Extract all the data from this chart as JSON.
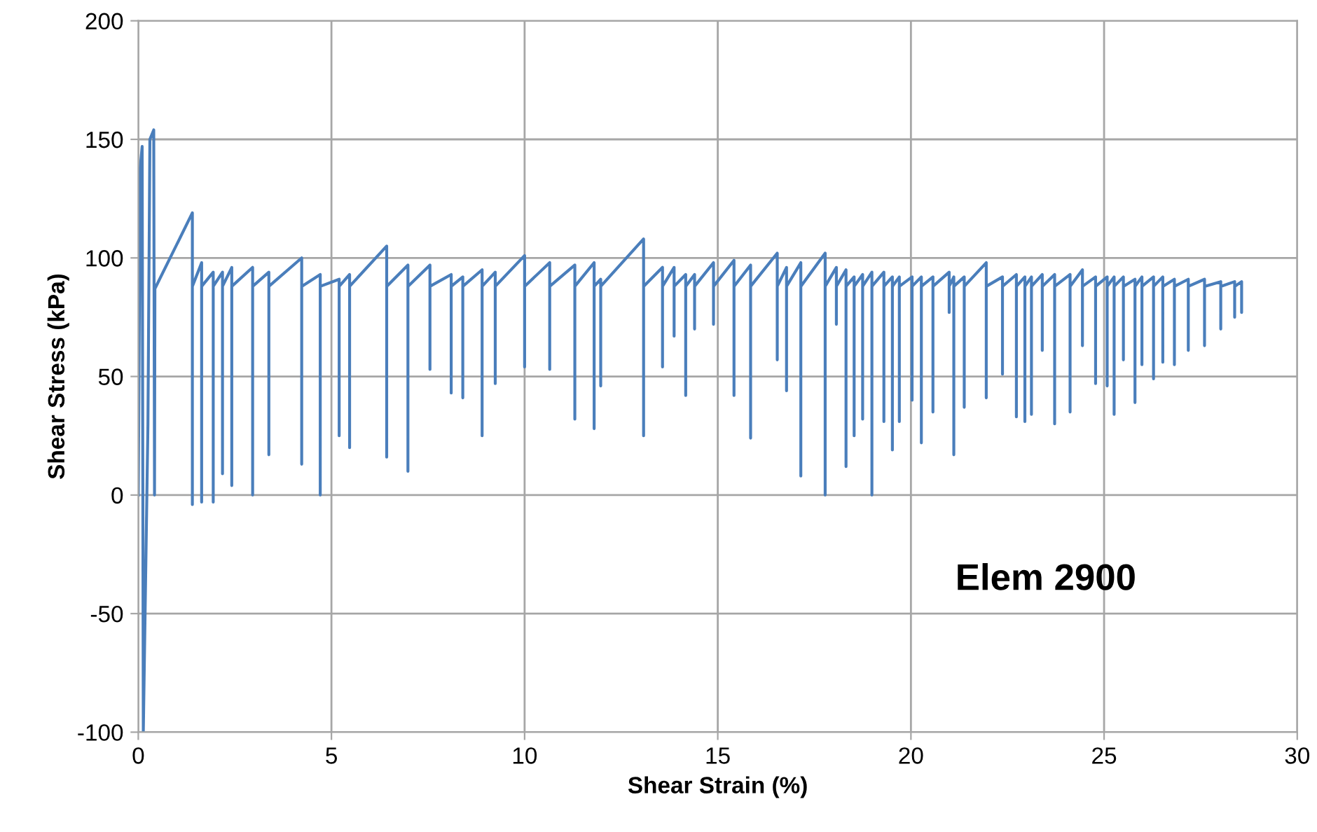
{
  "chart_data": {
    "type": "line",
    "xlabel": "Shear Strain (%)",
    "ylabel": "Shear Stress (kPa)",
    "annotations": [
      "Elem 2900"
    ],
    "xlim": [
      0,
      30
    ],
    "xticks": [
      0,
      5,
      10,
      15,
      20,
      25,
      30
    ],
    "ylim": [
      -100,
      200
    ],
    "yticks": [
      -100,
      -50,
      0,
      50,
      100,
      150,
      200
    ],
    "grid": true,
    "marker": "none",
    "line_style": "solid",
    "series": [
      {
        "color": "#4a7ebb",
        "x": [
          0,
          0.05,
          0.1,
          0.13,
          0.25,
          0.3,
          0.4,
          0.42,
          0.43,
          1.4,
          1.4,
          1.4,
          1.64,
          1.64,
          1.64,
          1.94,
          1.94,
          1.94,
          2.18,
          2.18,
          2.18,
          2.42,
          2.42,
          2.42,
          2.96,
          2.96,
          2.96,
          3.38,
          3.38,
          3.38,
          4.23,
          4.23,
          4.23,
          4.71,
          4.71,
          4.71,
          5.2,
          5.2,
          5.2,
          5.47,
          5.47,
          5.47,
          6.43,
          6.43,
          6.43,
          6.98,
          6.98,
          6.98,
          7.55,
          7.55,
          7.55,
          8.1,
          8.1,
          8.1,
          8.4,
          8.4,
          8.4,
          8.9,
          8.9,
          8.9,
          9.24,
          9.24,
          9.24,
          10.0,
          10.0,
          10.0,
          10.65,
          10.65,
          10.65,
          11.3,
          11.3,
          11.3,
          11.8,
          11.8,
          11.8,
          11.97,
          11.97,
          11.97,
          13.08,
          13.08,
          13.08,
          13.57,
          13.57,
          13.57,
          13.87,
          13.87,
          13.87,
          14.17,
          14.17,
          14.17,
          14.4,
          14.4,
          14.4,
          14.89,
          14.89,
          14.89,
          15.42,
          15.42,
          15.42,
          15.85,
          15.85,
          15.85,
          16.54,
          16.54,
          16.54,
          16.78,
          16.78,
          16.78,
          17.15,
          17.15,
          17.15,
          17.78,
          17.78,
          17.78,
          18.07,
          18.07,
          18.07,
          18.32,
          18.32,
          18.32,
          18.53,
          18.53,
          18.53,
          18.75,
          18.75,
          18.75,
          18.99,
          18.99,
          18.99,
          19.3,
          19.3,
          19.3,
          19.52,
          19.52,
          19.52,
          19.7,
          19.7,
          19.7,
          20.03,
          20.03,
          20.03,
          20.27,
          20.27,
          20.27,
          20.57,
          20.57,
          20.57,
          20.99,
          20.99,
          20.99,
          21.11,
          21.11,
          21.11,
          21.38,
          21.38,
          21.38,
          21.95,
          21.95,
          21.95,
          22.37,
          22.37,
          22.37,
          22.73,
          22.73,
          22.73,
          22.95,
          22.95,
          22.95,
          23.12,
          23.12,
          23.12,
          23.4,
          23.4,
          23.4,
          23.72,
          23.72,
          23.72,
          24.12,
          24.12,
          24.12,
          24.44,
          24.44,
          24.44,
          24.78,
          24.78,
          24.78,
          25.08,
          25.08,
          25.08,
          25.26,
          25.26,
          25.26,
          25.5,
          25.5,
          25.5,
          25.8,
          25.8,
          25.8,
          25.98,
          25.98,
          25.98,
          26.28,
          26.28,
          26.28,
          26.52,
          26.52,
          26.52,
          26.82,
          26.82,
          26.82,
          27.18,
          27.18,
          27.18,
          27.6,
          27.6,
          27.6,
          28.02,
          28.02,
          28.02,
          28.38,
          28.38,
          28.38,
          28.56,
          28.56,
          28.56
        ],
        "values": [
          0,
          138,
          147,
          -100,
          30,
          150,
          154,
          0,
          87,
          119,
          -4,
          88,
          98,
          -3,
          88,
          94,
          -3,
          88,
          94,
          9,
          88,
          96,
          4,
          88,
          96,
          0,
          88,
          94,
          17,
          88,
          100,
          13,
          88,
          93,
          0,
          88,
          91,
          25,
          88,
          93,
          20,
          88,
          105,
          16,
          88,
          97,
          10,
          88,
          97,
          53,
          88,
          93,
          43,
          88,
          92,
          41,
          88,
          95,
          25,
          88,
          94,
          47,
          88,
          101,
          54,
          88,
          98,
          53,
          88,
          97,
          32,
          88,
          98,
          28,
          88,
          91,
          46,
          88,
          108,
          25,
          88,
          96,
          54,
          88,
          96,
          67,
          88,
          93,
          42,
          88,
          93,
          70,
          88,
          98,
          72,
          88,
          99,
          42,
          88,
          97,
          24,
          88,
          102,
          57,
          88,
          96,
          44,
          88,
          98,
          8,
          88,
          102,
          0,
          88,
          96,
          72,
          88,
          95,
          12,
          88,
          92,
          25,
          88,
          93,
          32,
          88,
          94,
          0,
          88,
          94,
          31,
          88,
          92,
          19,
          88,
          92,
          31,
          88,
          92,
          40,
          88,
          92,
          22,
          88,
          92,
          35,
          88,
          94,
          77,
          88,
          92,
          17,
          88,
          92,
          37,
          88,
          98,
          41,
          88,
          92,
          51,
          88,
          93,
          33,
          88,
          92,
          31,
          88,
          92,
          34,
          88,
          93,
          61,
          88,
          93,
          30,
          88,
          93,
          35,
          88,
          95,
          63,
          88,
          92,
          47,
          88,
          92,
          46,
          88,
          92,
          34,
          88,
          92,
          57,
          88,
          91,
          39,
          88,
          92,
          55,
          88,
          92,
          49,
          88,
          92,
          56,
          88,
          91,
          55,
          88,
          91,
          61,
          88,
          91,
          63,
          88,
          90,
          70,
          88,
          90,
          75,
          88,
          90,
          77,
          87
        ]
      }
    ]
  }
}
